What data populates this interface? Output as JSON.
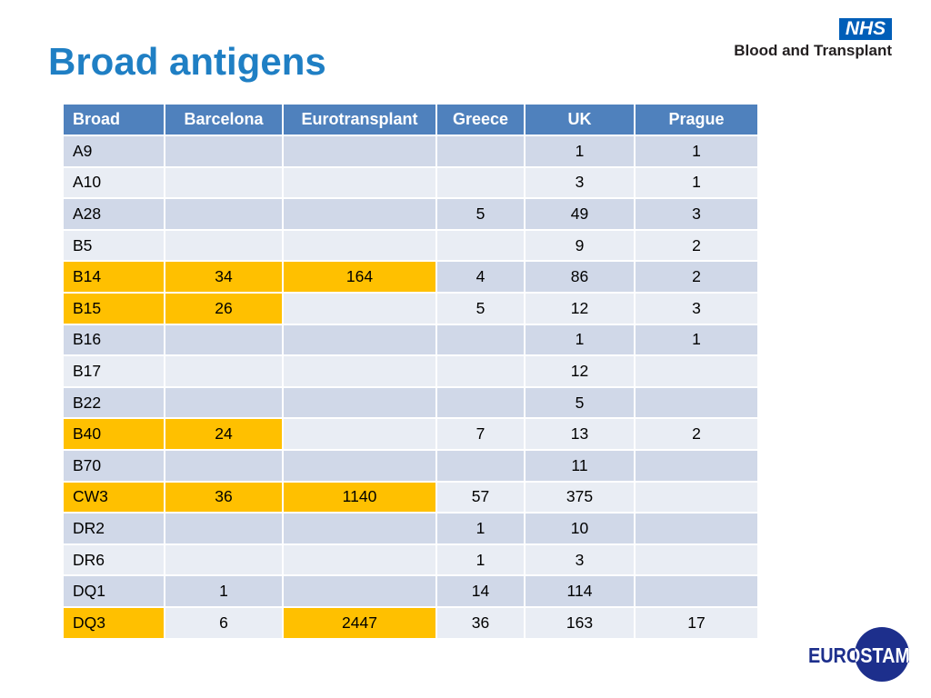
{
  "slide": {
    "title": "Broad antigens"
  },
  "logo": {
    "nhs_mark": "NHS",
    "nhs_subtitle": "Blood and Transplant",
    "eurostam_text": "EUROSTAM",
    "nhs_color": "#005eb8",
    "eurostam_color": "#1d2f8c"
  },
  "colors": {
    "title": "#1f7fc4",
    "header_bg": "#4f81bd",
    "row_odd": "#d0d8e8",
    "row_even": "#e9edf4",
    "highlight": "#ffc000"
  },
  "table": {
    "headers": [
      "Broad",
      "Barcelona",
      "Eurotransplant",
      "Greece",
      "UK",
      "Prague"
    ],
    "rows": [
      {
        "cells": [
          "A9",
          "",
          "",
          "",
          "1",
          "1"
        ],
        "hl": []
      },
      {
        "cells": [
          "A10",
          "",
          "",
          "",
          "3",
          "1"
        ],
        "hl": []
      },
      {
        "cells": [
          "A28",
          "",
          "",
          "5",
          "49",
          "3"
        ],
        "hl": []
      },
      {
        "cells": [
          "B5",
          "",
          "",
          "",
          "9",
          "2"
        ],
        "hl": []
      },
      {
        "cells": [
          "B14",
          "34",
          "164",
          "4",
          "86",
          "2"
        ],
        "hl": [
          0,
          1,
          2
        ]
      },
      {
        "cells": [
          "B15",
          "26",
          "",
          "5",
          "12",
          "3"
        ],
        "hl": [
          0,
          1
        ]
      },
      {
        "cells": [
          "B16",
          "",
          "",
          "",
          "1",
          "1"
        ],
        "hl": []
      },
      {
        "cells": [
          "B17",
          "",
          "",
          "",
          "12",
          ""
        ],
        "hl": []
      },
      {
        "cells": [
          "B22",
          "",
          "",
          "",
          "5",
          ""
        ],
        "hl": []
      },
      {
        "cells": [
          "B40",
          "24",
          "",
          "7",
          "13",
          "2"
        ],
        "hl": [
          0,
          1
        ]
      },
      {
        "cells": [
          "B70",
          "",
          "",
          "",
          "11",
          ""
        ],
        "hl": []
      },
      {
        "cells": [
          "CW3",
          "36",
          "1140",
          "57",
          "375",
          ""
        ],
        "hl": [
          0,
          1,
          2
        ]
      },
      {
        "cells": [
          "DR2",
          "",
          "",
          "1",
          "10",
          ""
        ],
        "hl": []
      },
      {
        "cells": [
          "DR6",
          "",
          "",
          "1",
          "3",
          ""
        ],
        "hl": []
      },
      {
        "cells": [
          "DQ1",
          "1",
          "",
          "14",
          "114",
          ""
        ],
        "hl": []
      },
      {
        "cells": [
          "DQ3",
          "6",
          "2447",
          "36",
          "163",
          "17"
        ],
        "hl": [
          0,
          2
        ]
      }
    ]
  }
}
